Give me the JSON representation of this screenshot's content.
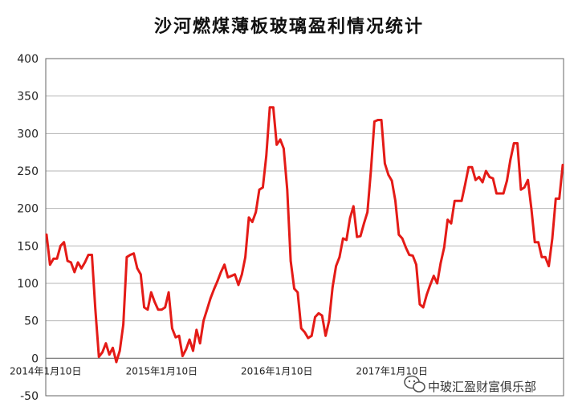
{
  "chart_data": {
    "type": "line",
    "title": "沙河燃煤薄板玻璃盈利情况统计",
    "xlabel": "",
    "ylabel": "",
    "ylim": [
      -50,
      400
    ],
    "yticks": [
      "400",
      "350",
      "300",
      "250",
      "200",
      "150",
      "100",
      "50",
      "0",
      "-50"
    ],
    "xticks": [
      "2014年1月10日",
      "2015年1月10日",
      "2016年1月10日",
      "2017年1月10日"
    ],
    "grid": true,
    "legend": "none",
    "line_color": "#e41b17",
    "series": [
      {
        "values": [
          165,
          125,
          133,
          133,
          150,
          155,
          130,
          128,
          115,
          128,
          120,
          128,
          138,
          138,
          65,
          2,
          8,
          20,
          5,
          14,
          -5,
          10,
          45,
          135,
          138,
          140,
          120,
          112,
          68,
          65,
          88,
          75,
          65,
          65,
          68,
          88,
          40,
          28,
          30,
          3,
          12,
          25,
          10,
          38,
          20,
          50,
          65,
          80,
          92,
          103,
          115,
          125,
          108,
          110,
          112,
          98,
          112,
          135,
          188,
          182,
          195,
          225,
          228,
          270,
          335,
          335,
          285,
          292,
          280,
          225,
          130,
          93,
          88,
          40,
          35,
          27,
          30,
          55,
          60,
          57,
          30,
          50,
          95,
          123,
          135,
          160,
          158,
          187,
          203,
          162,
          163,
          180,
          195,
          250,
          316,
          318,
          318,
          260,
          245,
          237,
          210,
          165,
          160,
          148,
          138,
          137,
          125,
          72,
          68,
          85,
          98,
          110,
          100,
          127,
          148,
          185,
          180,
          210,
          210,
          210,
          232,
          255,
          255,
          238,
          242,
          235,
          250,
          242,
          240,
          220,
          220,
          220,
          237,
          265,
          287,
          287,
          225,
          228,
          238,
          200,
          155,
          155,
          135,
          135,
          123,
          160,
          213,
          213,
          258
        ]
      }
    ]
  },
  "watermark": {
    "icon": "wechat-icon",
    "text": "中玻汇盈财富俱乐部"
  }
}
